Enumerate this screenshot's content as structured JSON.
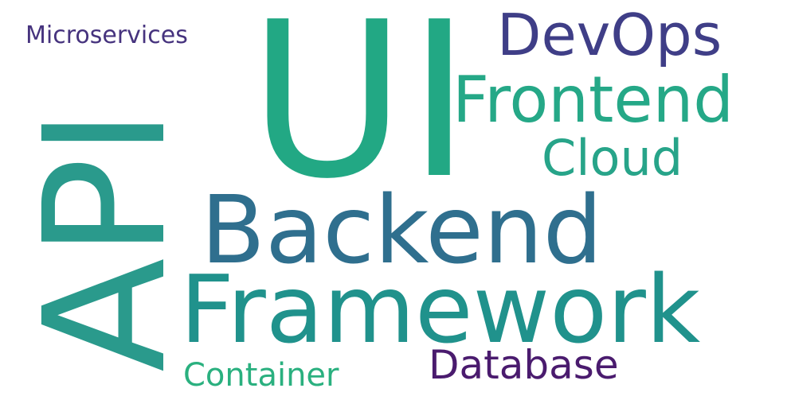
{
  "words": {
    "ui": {
      "text": "UI",
      "color": "#22a884"
    },
    "api": {
      "text": "API",
      "color": "#2a9a8c"
    },
    "backend": {
      "text": "Backend",
      "color": "#2f6f8e"
    },
    "framework": {
      "text": "Framework",
      "color": "#20928c"
    },
    "frontend": {
      "text": "Frontend",
      "color": "#25a887"
    },
    "devops": {
      "text": "DevOps",
      "color": "#3f3e87"
    },
    "cloud": {
      "text": "Cloud",
      "color": "#27a489"
    },
    "microservices": {
      "text": "Microservices",
      "color": "#46337e"
    },
    "database": {
      "text": "Database",
      "color": "#4a1b6e"
    },
    "container": {
      "text": "Container",
      "color": "#2ab07f"
    }
  }
}
